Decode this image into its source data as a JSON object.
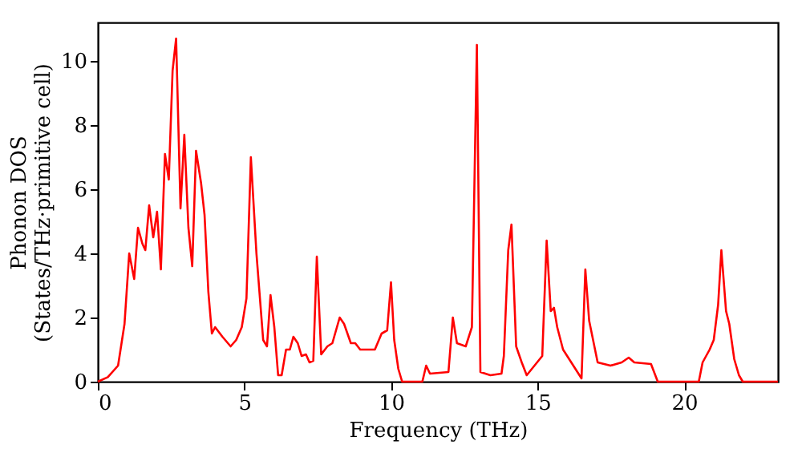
{
  "chart_data": {
    "type": "line",
    "xlabel": "Frequency (THz)",
    "ylabel": "Phonon DOS\n(States/THz·primitive cell)",
    "xlim": [
      0,
      23.2
    ],
    "xticks": [
      0,
      5,
      10,
      15,
      20
    ],
    "ylim": [
      0,
      11.2
    ],
    "yticks": [
      0,
      2,
      4,
      6,
      8,
      10
    ],
    "grid": false,
    "marker": "none",
    "line_style": "solid",
    "series": [
      {
        "color": "#ff0000",
        "x": [
          0,
          0.34,
          0.69,
          0.91,
          1.07,
          1.24,
          1.37,
          1.52,
          1.62,
          1.75,
          1.89,
          2.02,
          2.15,
          2.29,
          2.42,
          2.55,
          2.67,
          2.82,
          2.95,
          3.09,
          3.22,
          3.35,
          3.52,
          3.64,
          3.77,
          3.89,
          4.0,
          4.25,
          4.53,
          4.72,
          4.91,
          5.07,
          5.22,
          5.41,
          5.64,
          5.77,
          5.89,
          6.02,
          6.15,
          6.27,
          6.42,
          6.55,
          6.67,
          6.82,
          6.95,
          7.1,
          7.22,
          7.35,
          7.47,
          7.62,
          7.83,
          8.0,
          8.25,
          8.4,
          8.63,
          8.78,
          8.95,
          9.2,
          9.45,
          9.68,
          9.87,
          10.0,
          10.11,
          10.25,
          10.38,
          11.07,
          11.2,
          11.33,
          11.96,
          12.11,
          12.25,
          12.55,
          12.76,
          12.93,
          13.05,
          13.39,
          13.77,
          13.85,
          14.0,
          14.11,
          14.27,
          14.46,
          14.63,
          15.16,
          15.31,
          15.45,
          15.56,
          15.67,
          15.87,
          16.15,
          16.5,
          16.63,
          16.76,
          17.05,
          17.49,
          17.87,
          18.11,
          18.3,
          18.87,
          19.1,
          20.5,
          20.63,
          20.87,
          21.01,
          21.16,
          21.27,
          21.43,
          21.54,
          21.71,
          21.87,
          22.0,
          23.2
        ],
        "values": [
          0,
          0.14,
          0.5,
          1.8,
          4.0,
          3.2,
          4.8,
          4.3,
          4.1,
          5.5,
          4.5,
          5.3,
          3.5,
          7.1,
          6.3,
          9.7,
          10.7,
          5.4,
          7.7,
          4.8,
          3.6,
          7.2,
          6.2,
          5.2,
          2.8,
          1.5,
          1.7,
          1.4,
          1.1,
          1.3,
          1.7,
          2.6,
          7.0,
          4.0,
          1.3,
          1.1,
          2.7,
          1.7,
          0.2,
          0.2,
          1.0,
          1.0,
          1.4,
          1.2,
          0.8,
          0.85,
          0.6,
          0.65,
          3.9,
          0.85,
          1.1,
          1.2,
          2.0,
          1.8,
          1.2,
          1.2,
          1.0,
          1.0,
          1.0,
          1.5,
          1.6,
          3.1,
          1.3,
          0.4,
          0,
          0,
          0.5,
          0.25,
          0.3,
          2.0,
          1.2,
          1.1,
          1.7,
          10.5,
          0.3,
          0.2,
          0.25,
          0.8,
          4.1,
          4.9,
          1.1,
          0.6,
          0.2,
          0.8,
          4.4,
          2.2,
          2.3,
          1.7,
          1.0,
          0.6,
          0.1,
          3.5,
          1.9,
          0.6,
          0.5,
          0.6,
          0.75,
          0.6,
          0.55,
          0,
          0,
          0.6,
          1.0,
          1.3,
          2.4,
          4.1,
          2.2,
          1.8,
          0.7,
          0.2,
          0,
          0
        ]
      }
    ]
  }
}
